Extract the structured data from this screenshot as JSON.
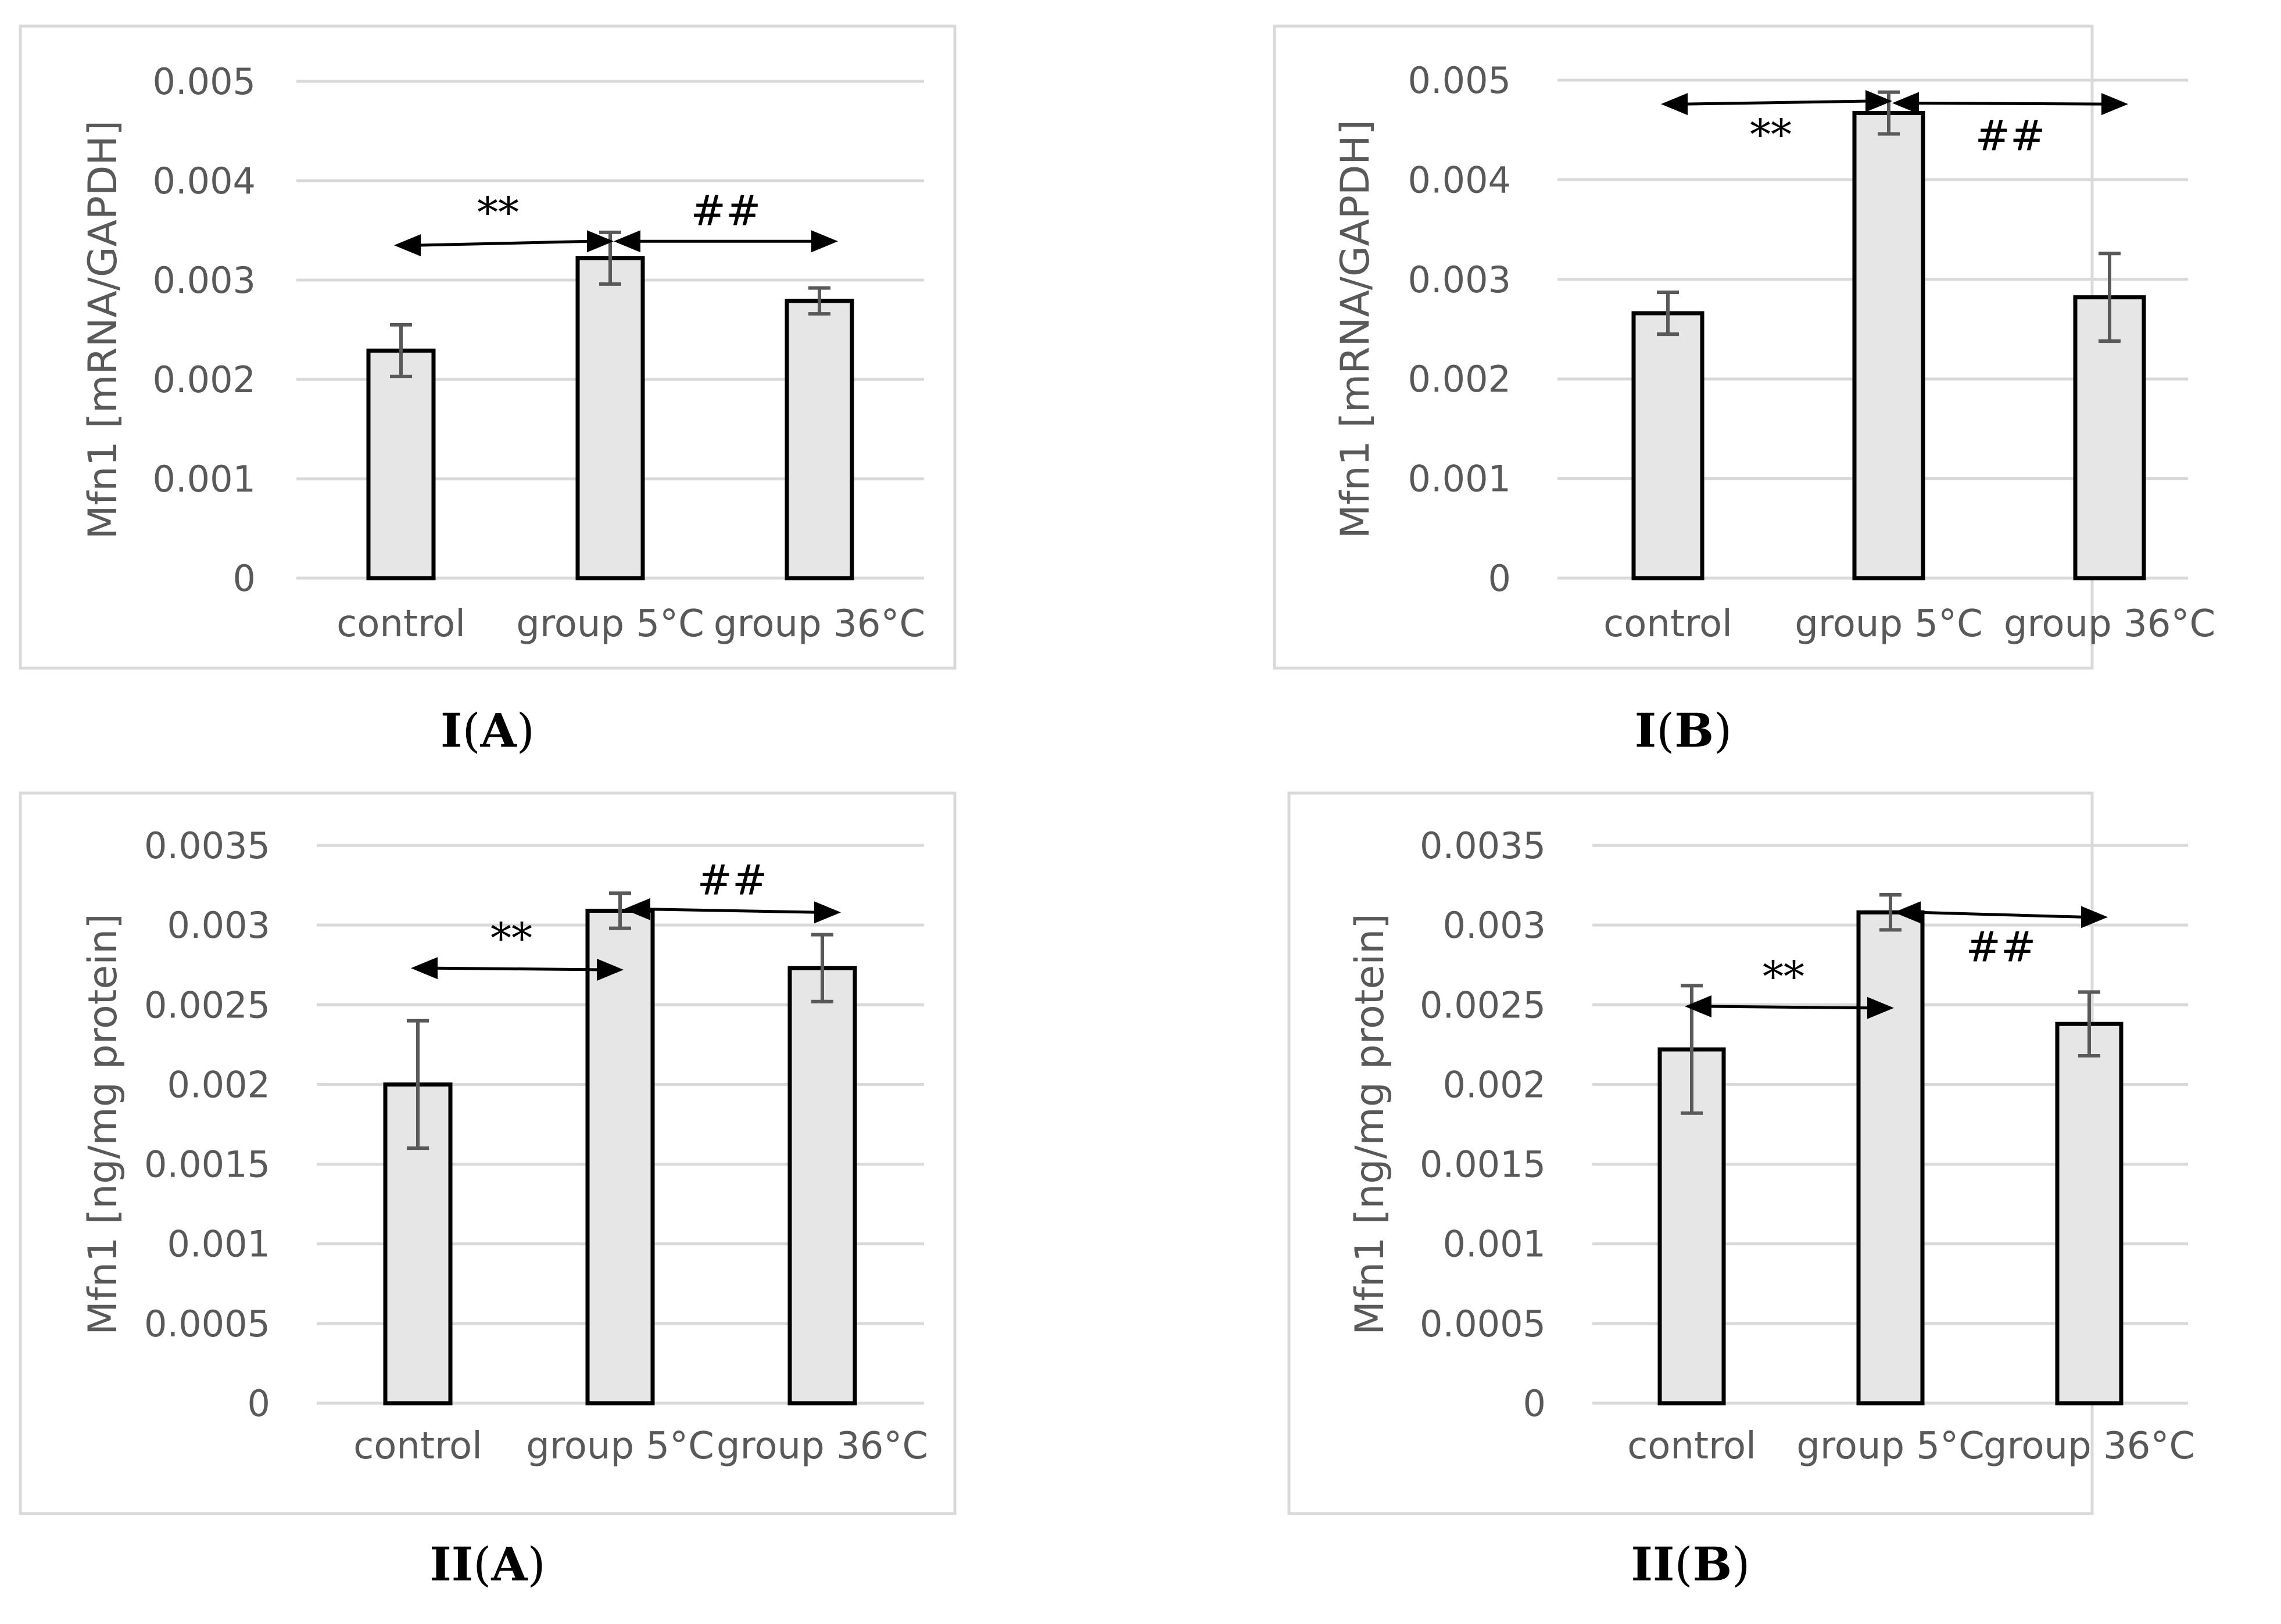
{
  "colors": {
    "bar_fill": "#e7e6e6",
    "bar_stroke": "#000000",
    "grid": "#d9d9d9",
    "axis_text": "#595959",
    "error_bar": "#595959",
    "frame": "#d9d9d9",
    "annotation": "#000000"
  },
  "chart_data": [
    {
      "id": "IA",
      "type": "bar",
      "caption": {
        "main": "I",
        "sub": "A"
      },
      "title": "",
      "xlabel": "",
      "ylabel": "Mfn1 [mRNA/GAPDH]",
      "categories": [
        "control",
        "group 5°C",
        "group 36°C"
      ],
      "values": [
        0.00229,
        0.00322,
        0.00279
      ],
      "errors": [
        0.00026,
        0.00026,
        0.00013
      ],
      "ylim": [
        0,
        0.005
      ],
      "yticks": [
        0,
        0.001,
        0.002,
        0.003,
        0.004,
        0.005
      ],
      "ytick_labels": [
        "0",
        "0.001",
        "0.002",
        "0.003",
        "0.004",
        "0.005"
      ],
      "grid": true,
      "annotations": [
        {
          "label": "**",
          "from": 0,
          "to": 1,
          "y_from": 0.00335,
          "y_to": 0.00339,
          "label_pos": "above",
          "heads": "both"
        },
        {
          "label": "##",
          "from": 1,
          "to": 2,
          "y_from": 0.00339,
          "y_to": 0.00339,
          "label_pos": "above",
          "heads": "both"
        }
      ]
    },
    {
      "id": "IB",
      "type": "bar",
      "caption": {
        "main": "I",
        "sub": "B"
      },
      "title": "",
      "xlabel": "",
      "ylabel": "Mfn1 [mRNA/GAPDH]",
      "categories": [
        "control",
        "group 5°C",
        "group 36°C"
      ],
      "values": [
        0.00266,
        0.00467,
        0.00282
      ],
      "errors": [
        0.00021,
        0.00021,
        0.00044
      ],
      "ylim": [
        0,
        0.005
      ],
      "yticks": [
        0,
        0.001,
        0.002,
        0.003,
        0.004,
        0.005
      ],
      "ytick_labels": [
        "0",
        "0.001",
        "0.002",
        "0.003",
        "0.004",
        "0.005"
      ],
      "grid": true,
      "annotations": [
        {
          "label": "**",
          "from": 0,
          "to": 1,
          "y_from": 0.00476,
          "y_to": 0.00479,
          "label_pos": "below",
          "heads": "both"
        },
        {
          "label": "##",
          "from": 1,
          "to": 2,
          "y_from": 0.00477,
          "y_to": 0.00476,
          "label_pos": "below",
          "heads": "both"
        }
      ]
    },
    {
      "id": "IIA",
      "type": "bar",
      "caption": {
        "main": "II",
        "sub": "A"
      },
      "title": "",
      "xlabel": "",
      "ylabel": "Mfn1 [ng/mg protein]",
      "categories": [
        "control",
        "group 5°C",
        "group 36°C"
      ],
      "values": [
        0.002,
        0.00309,
        0.00273
      ],
      "errors": [
        0.0004,
        0.00011,
        0.00021
      ],
      "ylim": [
        0,
        0.0035
      ],
      "yticks": [
        0,
        0.0005,
        0.001,
        0.0015,
        0.002,
        0.0025,
        0.003,
        0.0035
      ],
      "ytick_labels": [
        "0",
        "0.0005",
        "0.001",
        "0.0015",
        "0.002",
        "0.0025",
        "0.003",
        "0.0035"
      ],
      "grid": true,
      "annotations": [
        {
          "label": "**",
          "from": 0,
          "to": 1,
          "y_from": 0.00273,
          "y_to": 0.00272,
          "label_pos": "above",
          "heads": "both"
        },
        {
          "label": "##",
          "from": 1,
          "to": 2,
          "y_from": 0.0031,
          "y_to": 0.00308,
          "label_pos": "above",
          "heads": "both"
        }
      ]
    },
    {
      "id": "IIB",
      "type": "bar",
      "caption": {
        "main": "II",
        "sub": "B"
      },
      "title": "",
      "xlabel": "",
      "ylabel": "Mfn1 [ng/mg protein]",
      "categories": [
        "control",
        "group 5°C",
        "group 36°C"
      ],
      "values": [
        0.00222,
        0.00308,
        0.00238
      ],
      "errors": [
        0.0004,
        0.00011,
        0.0002
      ],
      "ylim": [
        0,
        0.0035
      ],
      "yticks": [
        0,
        0.0005,
        0.001,
        0.0015,
        0.002,
        0.0025,
        0.003,
        0.0035
      ],
      "ytick_labels": [
        "0",
        "0.0005",
        "0.001",
        "0.0015",
        "0.002",
        "0.0025",
        "0.003",
        "0.0035"
      ],
      "grid": true,
      "annotations": [
        {
          "label": "**",
          "from": 0,
          "to": 1,
          "y_from": 0.00249,
          "y_to": 0.00248,
          "label_pos": "above",
          "heads": "both"
        },
        {
          "label": "##",
          "from": 1,
          "to": 2,
          "y_from": 0.00308,
          "y_to": 0.00305,
          "label_pos": "below",
          "heads": "both"
        }
      ]
    }
  ]
}
